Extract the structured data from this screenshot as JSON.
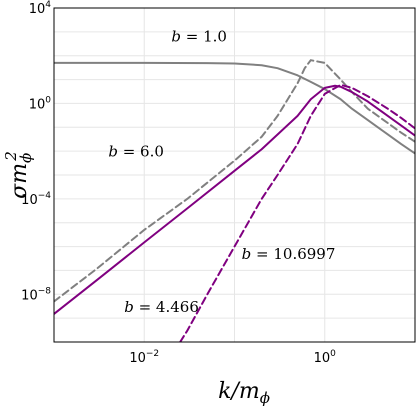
{
  "chart_data": {
    "type": "line",
    "title": "",
    "xlabel": "k/m_φ",
    "ylabel": "σm_φ^2",
    "x_scale": "log",
    "y_scale": "log",
    "xlim": [
      0.001,
      10
    ],
    "ylim": [
      1e-10,
      10000
    ],
    "grid": true,
    "x_ticks": [
      {
        "label": "10",
        "exp": "−2",
        "value": 0.01
      },
      {
        "label": "10",
        "exp": "0",
        "value": 1
      }
    ],
    "y_ticks": [
      {
        "label": "10",
        "exp": "−8",
        "value": 1e-08
      },
      {
        "label": "10",
        "exp": "−4",
        "value": 0.0001
      },
      {
        "label": "10",
        "exp": "0",
        "value": 1
      },
      {
        "label": "10",
        "exp": "4",
        "value": 10000
      }
    ],
    "series": [
      {
        "name": "b = 1.0",
        "color": "#808080",
        "dash": "solid",
        "x": [
          0.001,
          0.01,
          0.05,
          0.1,
          0.2,
          0.3,
          0.5,
          0.7,
          1.0,
          1.5,
          2.0,
          3.0,
          5.0,
          7.0,
          10.0
        ],
        "y": [
          50,
          50,
          49,
          47,
          40,
          30,
          15,
          8,
          4,
          1.5,
          0.6,
          0.2,
          0.05,
          0.02,
          0.008
        ]
      },
      {
        "name": "b = 4.466",
        "color": "#808080",
        "dash": "dashed",
        "x": [
          0.001,
          0.003,
          0.01,
          0.03,
          0.1,
          0.2,
          0.3,
          0.5,
          0.6,
          0.7,
          1.0,
          1.5,
          2.0,
          3.0,
          5.0,
          7.0,
          10.0
        ],
        "y": [
          5e-09,
          1.2e-07,
          5e-06,
          0.0001,
          0.004,
          0.04,
          0.3,
          7,
          30,
          65,
          50,
          10,
          3,
          0.6,
          0.15,
          0.06,
          0.025
        ]
      },
      {
        "name": "b = 6.0",
        "color": "#800080",
        "dash": "solid",
        "x": [
          0.001,
          0.003,
          0.01,
          0.03,
          0.1,
          0.2,
          0.3,
          0.5,
          0.7,
          1.0,
          1.3,
          1.5,
          2.0,
          3.0,
          5.0,
          7.0,
          10.0
        ],
        "y": [
          1.5e-09,
          4e-08,
          1.5e-06,
          4e-05,
          0.0015,
          0.012,
          0.05,
          0.3,
          1.5,
          4.5,
          5.5,
          5,
          3,
          1.2,
          0.3,
          0.12,
          0.045
        ]
      },
      {
        "name": "b = 10.6997",
        "color": "#800080",
        "dash": "dashed",
        "x": [
          0.025,
          0.03,
          0.05,
          0.1,
          0.2,
          0.3,
          0.5,
          0.7,
          1.0,
          1.5,
          2.0,
          3.0,
          5.0,
          7.0,
          10.0
        ],
        "y": [
          1e-10,
          3e-10,
          1e-08,
          1e-06,
          0.0001,
          0.001,
          0.02,
          0.3,
          2.5,
          6,
          4.5,
          2,
          0.6,
          0.25,
          0.09
        ]
      }
    ],
    "annotations": [
      {
        "var": "b",
        "text": " = 1.0",
        "x": 0.02,
        "y": 400
      },
      {
        "var": "b",
        "text": " = 6.0",
        "x": 0.004,
        "y": 0.006
      },
      {
        "var": "b",
        "text": " = 10.6997",
        "x": 0.12,
        "y": 3e-07
      },
      {
        "var": "b",
        "text": " = 4.466",
        "x": 0.006,
        "y": 1.8e-09
      }
    ]
  }
}
